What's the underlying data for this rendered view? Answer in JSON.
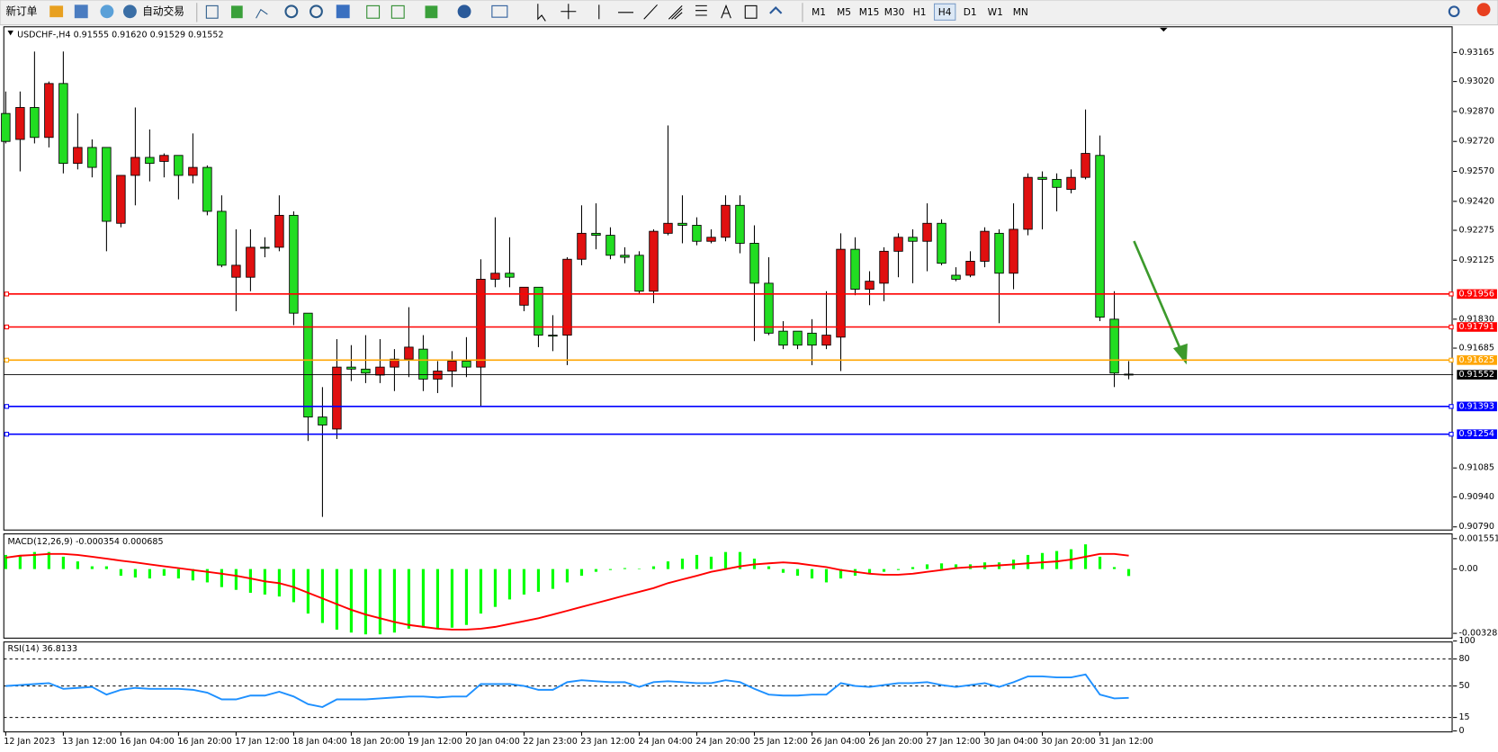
{
  "toolbar": {
    "buttons": [
      "新订单",
      "自动交易"
    ],
    "timeframes": [
      "M1",
      "M5",
      "M15",
      "M30",
      "H1",
      "H4",
      "D1",
      "W1",
      "MN"
    ],
    "active_timeframe": "H4"
  },
  "chart_data": [
    {
      "type": "candlestick",
      "title": "USDCHF-,H4",
      "legend_values": [
        "0.91555",
        "0.91620",
        "0.91529",
        "0.91552"
      ],
      "up_color": "#e01010",
      "down_color": "#22dd22",
      "x": [
        "12 Jan 2023",
        null,
        null,
        null,
        "13 Jan 12:00",
        null,
        null,
        null,
        "16 Jan 04:00",
        null,
        null,
        null,
        "16 Jan 20:00",
        null,
        null,
        null,
        "17 Jan 12:00",
        null,
        null,
        null,
        "18 Jan 04:00",
        null,
        null,
        null,
        "18 Jan 20:00",
        null,
        null,
        null,
        "19 Jan 12:00",
        null,
        null,
        null,
        "20 Jan 04:00",
        null,
        null,
        null,
        "22 Jan 23:00",
        null,
        null,
        null,
        "23 Jan 12:00",
        null,
        null,
        null,
        "24 Jan 04:00",
        null,
        null,
        null,
        "24 Jan 20:00",
        null,
        null,
        null,
        "25 Jan 12:00",
        null,
        null,
        null,
        "26 Jan 04:00",
        null,
        null,
        null,
        "26 Jan 20:00",
        null,
        null,
        null,
        "27 Jan 12:00",
        null,
        null,
        null,
        "30 Jan 04:00",
        null,
        null,
        null,
        "30 Jan 20:00",
        null,
        null,
        null,
        "31 Jan 12:00",
        null,
        null
      ],
      "candles": [
        [
          0.9286,
          0.9297,
          0.9271,
          0.9272
        ],
        [
          0.9273,
          0.9297,
          0.9257,
          0.9289
        ],
        [
          0.9289,
          0.9317,
          0.9271,
          0.9274
        ],
        [
          0.9274,
          0.9302,
          0.9269,
          0.9301
        ],
        [
          0.9301,
          0.9317,
          0.9256,
          0.9261
        ],
        [
          0.9261,
          0.9286,
          0.9258,
          0.9269
        ],
        [
          0.9269,
          0.9273,
          0.9254,
          0.9259
        ],
        [
          0.9269,
          0.9269,
          0.9217,
          0.9232
        ],
        [
          0.9231,
          0.9255,
          0.9229,
          0.9255
        ],
        [
          0.9255,
          0.9289,
          0.924,
          0.9264
        ],
        [
          0.9264,
          0.9278,
          0.9252,
          0.9261
        ],
        [
          0.9262,
          0.9266,
          0.9254,
          0.9265
        ],
        [
          0.9265,
          0.9265,
          0.9243,
          0.9255
        ],
        [
          0.9255,
          0.9276,
          0.9251,
          0.9259
        ],
        [
          0.9259,
          0.926,
          0.9235,
          0.9237
        ],
        [
          0.9237,
          0.9245,
          0.9209,
          0.921
        ],
        [
          0.9204,
          0.9228,
          0.9187,
          0.921
        ],
        [
          0.9204,
          0.9228,
          0.9197,
          0.9219
        ],
        [
          0.9219,
          0.9224,
          0.9214,
          0.9219
        ],
        [
          0.9219,
          0.9245,
          0.9217,
          0.9235
        ],
        [
          0.9235,
          0.9237,
          0.918,
          0.9186
        ],
        [
          0.9186,
          0.9186,
          0.9122,
          0.9134
        ],
        [
          0.9134,
          0.9149,
          0.9084,
          0.913
        ],
        [
          0.9128,
          0.9173,
          0.9123,
          0.9159
        ],
        [
          0.9159,
          0.917,
          0.9152,
          0.9158
        ],
        [
          0.9158,
          0.9175,
          0.9151,
          0.9156
        ],
        [
          0.9155,
          0.9173,
          0.9151,
          0.9159
        ],
        [
          0.9159,
          0.9168,
          0.9147,
          0.9163
        ],
        [
          0.9163,
          0.9189,
          0.9154,
          0.9169
        ],
        [
          0.9168,
          0.9175,
          0.9147,
          0.9153
        ],
        [
          0.9153,
          0.9162,
          0.9146,
          0.9157
        ],
        [
          0.9157,
          0.9167,
          0.9149,
          0.9162
        ],
        [
          0.9162,
          0.9174,
          0.9154,
          0.9159
        ],
        [
          0.9159,
          0.9213,
          0.9139,
          0.9203
        ],
        [
          0.9203,
          0.9234,
          0.9199,
          0.9206
        ],
        [
          0.9206,
          0.9224,
          0.9199,
          0.9204
        ],
        [
          0.919,
          0.9199,
          0.9187,
          0.9199
        ],
        [
          0.9199,
          0.9199,
          0.9169,
          0.9175
        ],
        [
          0.9175,
          0.9185,
          0.9167,
          0.9175
        ],
        [
          0.9175,
          0.9214,
          0.916,
          0.9213
        ],
        [
          0.9213,
          0.924,
          0.921,
          0.9226
        ],
        [
          0.9226,
          0.9241,
          0.9218,
          0.9225
        ],
        [
          0.9225,
          0.9229,
          0.9213,
          0.9215
        ],
        [
          0.9215,
          0.9219,
          0.9211,
          0.9214
        ],
        [
          0.9215,
          0.9217,
          0.9196,
          0.9197
        ],
        [
          0.9197,
          0.9228,
          0.9191,
          0.9227
        ],
        [
          0.9226,
          0.928,
          0.9225,
          0.9231
        ],
        [
          0.9231,
          0.9245,
          0.9221,
          0.923
        ],
        [
          0.923,
          0.9234,
          0.922,
          0.9222
        ],
        [
          0.9222,
          0.9228,
          0.9221,
          0.9224
        ],
        [
          0.9224,
          0.9245,
          0.9222,
          0.924
        ],
        [
          0.924,
          0.9245,
          0.9216,
          0.9221
        ],
        [
          0.9221,
          0.923,
          0.9172,
          0.9201
        ],
        [
          0.9201,
          0.9214,
          0.9175,
          0.9176
        ],
        [
          0.9177,
          0.9182,
          0.9168,
          0.917
        ],
        [
          0.9177,
          0.9177,
          0.9168,
          0.917
        ],
        [
          0.9176,
          0.9183,
          0.916,
          0.917
        ],
        [
          0.917,
          0.9197,
          0.9168,
          0.9175
        ],
        [
          0.9174,
          0.9226,
          0.9157,
          0.9218
        ],
        [
          0.9218,
          0.9224,
          0.9195,
          0.9198
        ],
        [
          0.9198,
          0.9207,
          0.919,
          0.9202
        ],
        [
          0.9201,
          0.9219,
          0.9192,
          0.9217
        ],
        [
          0.9217,
          0.9226,
          0.9204,
          0.9224
        ],
        [
          0.9224,
          0.9228,
          0.9201,
          0.9222
        ],
        [
          0.9222,
          0.9241,
          0.9207,
          0.9231
        ],
        [
          0.9231,
          0.9233,
          0.921,
          0.9211
        ],
        [
          0.9205,
          0.9209,
          0.9202,
          0.9203
        ],
        [
          0.9205,
          0.9217,
          0.9204,
          0.9212
        ],
        [
          0.9212,
          0.9229,
          0.9209,
          0.9227
        ],
        [
          0.9226,
          0.9228,
          0.9181,
          0.9206
        ],
        [
          0.9206,
          0.9241,
          0.9198,
          0.9228
        ],
        [
          0.9228,
          0.9256,
          0.9225,
          0.9254
        ],
        [
          0.9254,
          0.9257,
          0.9228,
          0.9253
        ],
        [
          0.9253,
          0.9256,
          0.9237,
          0.9249
        ],
        [
          0.9248,
          0.9258,
          0.9246,
          0.9254
        ],
        [
          0.9254,
          0.9288,
          0.9253,
          0.9266
        ],
        [
          0.9265,
          0.9275,
          0.9182,
          0.9184
        ],
        [
          0.9183,
          0.9197,
          0.9149,
          0.9156
        ],
        [
          0.91555,
          0.9162,
          0.91529,
          0.91552
        ]
      ],
      "ylim": [
        0.90779,
        0.93294
      ],
      "yticks": [
        0.93165,
        {
          "value": 0.9302,
          "label": "0.93020"
        },
        {
          "value": 0.9287,
          "label": "0.92870"
        },
        {
          "value": 0.9272,
          "label": "0.92720"
        },
        {
          "value": 0.9257,
          "label": "0.92570"
        },
        {
          "value": 0.9242,
          "label": "0.92420"
        },
        0.92275,
        0.92125,
        {
          "value": 0.9183,
          "label": "0.91830"
        },
        0.91685,
        0.91085,
        {
          "value": 0.9094,
          "label": "0.90940"
        },
        {
          "value": 0.9079,
          "label": "0.90790"
        }
      ],
      "levels": [
        {
          "value": 0.91956,
          "color": "#ff0000"
        },
        {
          "value": 0.91791,
          "color": "#ff0000"
        },
        {
          "value": 0.91625,
          "color": "#ffa500"
        },
        {
          "value": 0.91393,
          "color": "#0000ff"
        },
        {
          "value": 0.91254,
          "color": "#0000ff"
        }
      ]
    },
    {
      "type": "macd",
      "title": "MACD(12,26,9)",
      "ylim": [
        -0.00328,
        0.001551
      ],
      "yticks": [
        0.001551,
        {
          "value": 0,
          "label": "0.00"
        },
        -0.00328
      ],
      "series": [
        {
          "color": "#00ff00",
          "values": [
            0.00072,
            0.00072,
            0.00087,
            0.00087,
            0.00063,
            0.00039,
            0.00014,
            0.00014,
            -0.00034,
            -0.00043,
            -0.00048,
            -0.00034,
            -0.00048,
            -0.00058,
            -0.00068,
            -0.00092,
            -0.00106,
            -0.00121,
            -0.0013,
            -0.0014,
            -0.00169,
            -0.00227,
            -0.00275,
            -0.00309,
            -0.00324,
            -0.00333,
            -0.00333,
            -0.00324,
            -0.00304,
            -0.00299,
            -0.00304,
            -0.00299,
            -0.00285,
            -0.00227,
            -0.00193,
            -0.00155,
            -0.0013,
            -0.00116,
            -0.00101,
            -0.00068,
            -0.00034,
            -0.00014,
            -5e-05,
            5e-05,
            2e-05,
            0.00014,
            0.00039,
            0.00053,
            0.00072,
            0.00063,
            0.00087,
            0.00087,
            0.00053,
            0.00014,
            -0.00019,
            -0.00034,
            -0.00048,
            -0.00068,
            -0.00048,
            -0.00034,
            -0.00024,
            -0.00014,
            -5e-05,
            0.0001,
            0.00024,
            0.00029,
            0.00024,
            0.00024,
            0.00034,
            0.00034,
            0.00048,
            0.00072,
            0.00082,
            0.00092,
            0.00101,
            0.00126,
            0.00063,
            0.0001,
            -0.000354
          ]
        },
        {
          "color": "#ff0000",
          "values": [
            0.00058,
            0.00068,
            0.00072,
            0.00077,
            0.00077,
            0.00072,
            0.00063,
            0.00053,
            0.00043,
            0.00034,
            0.00024,
            0.00014,
            5e-05,
            -5e-05,
            -0.00014,
            -0.00024,
            -0.00034,
            -0.00048,
            -0.00063,
            -0.00072,
            -0.00092,
            -0.00121,
            -0.0015,
            -0.00179,
            -0.00208,
            -0.00232,
            -0.00251,
            -0.0027,
            -0.00285,
            -0.00295,
            -0.00304,
            -0.00309,
            -0.00309,
            -0.00304,
            -0.00295,
            -0.0028,
            -0.00266,
            -0.00251,
            -0.00232,
            -0.00213,
            -0.00193,
            -0.00174,
            -0.00155,
            -0.00135,
            -0.00116,
            -0.00097,
            -0.00072,
            -0.00053,
            -0.00034,
            -0.00014,
            0,
            0.00014,
            0.00024,
            0.00029,
            0.00034,
            0.00029,
            0.00019,
            0.0001,
            -5e-05,
            -0.00014,
            -0.00024,
            -0.00029,
            -0.00029,
            -0.00024,
            -0.00014,
            -5e-05,
            5e-05,
            0.0001,
            0.00014,
            0.00019,
            0.00024,
            0.00029,
            0.00034,
            0.00039,
            0.00048,
            0.00063,
            0.00077,
            0.00077,
            0.000685
          ]
        }
      ]
    },
    {
      "type": "line",
      "title": "RSI(14)",
      "ylim": [
        0,
        100
      ],
      "yticks": [
        100,
        80,
        50,
        15,
        0
      ],
      "series": [
        {
          "color": "#1e90ff",
          "values": [
            50.0,
            51.1,
            52.1,
            53.2,
            46.8,
            47.9,
            48.9,
            40.4,
            45.7,
            47.9,
            46.8,
            46.8,
            46.8,
            45.7,
            42.6,
            35.1,
            35.1,
            39.4,
            39.4,
            43.6,
            38.3,
            29.8,
            26.6,
            35.1,
            35.1,
            35.1,
            36.2,
            37.2,
            38.3,
            38.3,
            37.2,
            38.3,
            38.3,
            52.1,
            52.1,
            52.1,
            50.0,
            45.7,
            45.7,
            54.3,
            56.4,
            55.3,
            54.3,
            54.3,
            48.9,
            54.3,
            55.3,
            54.3,
            53.2,
            53.2,
            56.4,
            54.3,
            46.8,
            40.4,
            39.4,
            39.4,
            40.4,
            40.4,
            53.2,
            50.0,
            48.9,
            51.1,
            53.2,
            53.2,
            54.3,
            51.1,
            48.9,
            51.1,
            53.2,
            48.9,
            54.3,
            60.6,
            60.6,
            59.6,
            59.6,
            62.8,
            40.4,
            36.2,
            36.8133
          ]
        }
      ]
    }
  ]
}
